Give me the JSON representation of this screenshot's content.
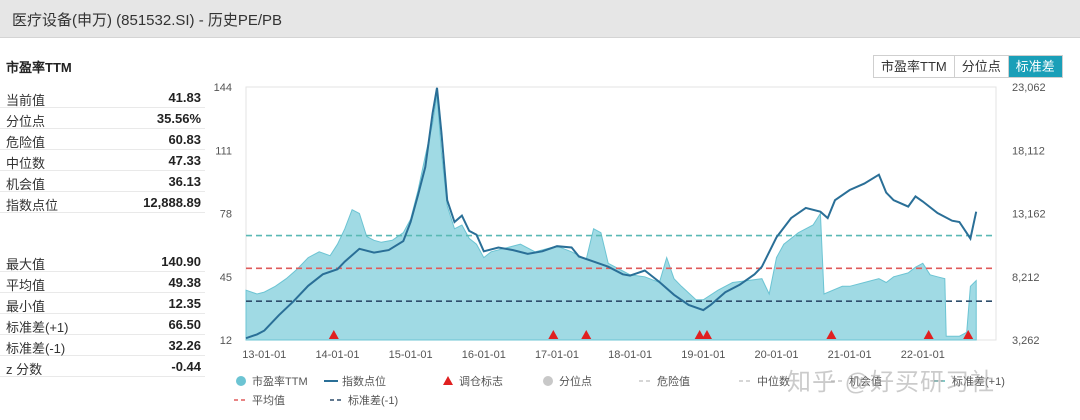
{
  "header": {
    "title": "医疗设备(申万) (851532.SI) - 历史PE/PB"
  },
  "metric_title": "市盈率TTM",
  "stats_top": [
    {
      "label": "当前值",
      "value": "41.83"
    },
    {
      "label": "分位点",
      "value": "35.56%"
    },
    {
      "label": "危险值",
      "value": "60.83"
    },
    {
      "label": "中位数",
      "value": "47.33"
    },
    {
      "label": "机会值",
      "value": "36.13"
    },
    {
      "label": "指数点位",
      "value": "12,888.89"
    }
  ],
  "stats_bottom": [
    {
      "label": "最大值",
      "value": "140.90"
    },
    {
      "label": "平均值",
      "value": "49.38"
    },
    {
      "label": "最小值",
      "value": "12.35"
    },
    {
      "label": "标准差(+1)",
      "value": "66.50"
    },
    {
      "label": "标准差(-1)",
      "value": "32.26"
    },
    {
      "label": "z 分数",
      "value": "-0.44"
    }
  ],
  "buttons": [
    {
      "label": "市盈率TTM",
      "active": false
    },
    {
      "label": "分位点",
      "active": false
    },
    {
      "label": "标准差",
      "active": true
    }
  ],
  "watermark": "知乎 @好买研习社",
  "colors": {
    "pe_fill": "#8fd4df",
    "pe_stroke": "#6cc4d3",
    "index_line": "#2a6f97",
    "mean_line": "#e05b5b",
    "std_plus": "#5ab9b5",
    "std_minus": "#2e4d6b",
    "marker": "#e02020",
    "legend_grey": "#c8c8c8"
  },
  "chart_data": {
    "type": "area",
    "x_ticks": [
      "13-01-01",
      "14-01-01",
      "15-01-01",
      "16-01-01",
      "17-01-01",
      "18-01-01",
      "19-01-01",
      "20-01-01",
      "21-01-01",
      "22-01-01"
    ],
    "x_range": [
      2012.75,
      2023.0
    ],
    "y_left": {
      "ticks": [
        "12",
        "45",
        "78",
        "111",
        "144"
      ],
      "range": [
        12,
        144
      ]
    },
    "y_right": {
      "ticks": [
        "3,262",
        "8,212",
        "13,162",
        "18,112",
        "23,062"
      ],
      "range": [
        3262,
        23062
      ]
    },
    "series": [
      {
        "name": "市盈率TTM",
        "axis": "left",
        "style": "area",
        "points": [
          [
            2012.75,
            38
          ],
          [
            2012.9,
            36
          ],
          [
            2013.0,
            37
          ],
          [
            2013.15,
            40
          ],
          [
            2013.3,
            44
          ],
          [
            2013.45,
            49
          ],
          [
            2013.6,
            55
          ],
          [
            2013.75,
            58
          ],
          [
            2013.9,
            56
          ],
          [
            2014.0,
            62
          ],
          [
            2014.1,
            70
          ],
          [
            2014.2,
            80
          ],
          [
            2014.3,
            78
          ],
          [
            2014.4,
            66
          ],
          [
            2014.5,
            64
          ],
          [
            2014.6,
            63
          ],
          [
            2014.75,
            64
          ],
          [
            2014.9,
            68
          ],
          [
            2015.0,
            75
          ],
          [
            2015.1,
            90
          ],
          [
            2015.2,
            108
          ],
          [
            2015.3,
            125
          ],
          [
            2015.36,
            140
          ],
          [
            2015.42,
            110
          ],
          [
            2015.5,
            82
          ],
          [
            2015.6,
            70
          ],
          [
            2015.7,
            72
          ],
          [
            2015.8,
            65
          ],
          [
            2015.9,
            62
          ],
          [
            2016.0,
            55
          ],
          [
            2016.1,
            58
          ],
          [
            2016.3,
            60
          ],
          [
            2016.5,
            62
          ],
          [
            2016.7,
            58
          ],
          [
            2016.9,
            60
          ],
          [
            2017.0,
            61
          ],
          [
            2017.2,
            58
          ],
          [
            2017.4,
            54
          ],
          [
            2017.5,
            70
          ],
          [
            2017.6,
            68
          ],
          [
            2017.7,
            52
          ],
          [
            2017.9,
            48
          ],
          [
            2018.0,
            46
          ],
          [
            2018.2,
            45
          ],
          [
            2018.4,
            42
          ],
          [
            2018.5,
            55
          ],
          [
            2018.6,
            44
          ],
          [
            2018.7,
            40
          ],
          [
            2018.9,
            33
          ],
          [
            2019.0,
            33
          ],
          [
            2019.2,
            38
          ],
          [
            2019.4,
            42
          ],
          [
            2019.6,
            43
          ],
          [
            2019.8,
            44
          ],
          [
            2019.9,
            36
          ],
          [
            2020.0,
            55
          ],
          [
            2020.1,
            62
          ],
          [
            2020.3,
            68
          ],
          [
            2020.5,
            72
          ],
          [
            2020.6,
            78
          ],
          [
            2020.65,
            36
          ],
          [
            2020.9,
            40
          ],
          [
            2021.0,
            40
          ],
          [
            2021.2,
            42
          ],
          [
            2021.4,
            44
          ],
          [
            2021.5,
            42
          ],
          [
            2021.6,
            45
          ],
          [
            2021.8,
            47
          ],
          [
            2021.9,
            50
          ],
          [
            2022.0,
            52
          ],
          [
            2022.1,
            46
          ],
          [
            2022.2,
            45
          ],
          [
            2022.3,
            44
          ],
          [
            2022.32,
            14
          ],
          [
            2022.5,
            14
          ],
          [
            2022.6,
            16
          ],
          [
            2022.65,
            40
          ],
          [
            2022.73,
            43
          ]
        ]
      },
      {
        "name": "指数点位",
        "axis": "right",
        "style": "line",
        "points": [
          [
            2012.75,
            3400
          ],
          [
            2012.9,
            3700
          ],
          [
            2013.0,
            4000
          ],
          [
            2013.2,
            5200
          ],
          [
            2013.4,
            6300
          ],
          [
            2013.6,
            7500
          ],
          [
            2013.8,
            8400
          ],
          [
            2014.0,
            8800
          ],
          [
            2014.1,
            9400
          ],
          [
            2014.3,
            10400
          ],
          [
            2014.5,
            10100
          ],
          [
            2014.7,
            10300
          ],
          [
            2014.9,
            11000
          ],
          [
            2015.0,
            12500
          ],
          [
            2015.1,
            14600
          ],
          [
            2015.2,
            16800
          ],
          [
            2015.3,
            21000
          ],
          [
            2015.36,
            23000
          ],
          [
            2015.42,
            19500
          ],
          [
            2015.5,
            14200
          ],
          [
            2015.6,
            12500
          ],
          [
            2015.7,
            13000
          ],
          [
            2015.8,
            11800
          ],
          [
            2015.9,
            11500
          ],
          [
            2016.0,
            10200
          ],
          [
            2016.2,
            10500
          ],
          [
            2016.4,
            10300
          ],
          [
            2016.6,
            10000
          ],
          [
            2016.8,
            10200
          ],
          [
            2017.0,
            10600
          ],
          [
            2017.2,
            10500
          ],
          [
            2017.3,
            9800
          ],
          [
            2017.5,
            9400
          ],
          [
            2017.7,
            9000
          ],
          [
            2017.9,
            8400
          ],
          [
            2018.0,
            8300
          ],
          [
            2018.2,
            8700
          ],
          [
            2018.4,
            7800
          ],
          [
            2018.6,
            6800
          ],
          [
            2018.8,
            6000
          ],
          [
            2019.0,
            5600
          ],
          [
            2019.1,
            6000
          ],
          [
            2019.3,
            7000
          ],
          [
            2019.5,
            7600
          ],
          [
            2019.7,
            8400
          ],
          [
            2019.8,
            9000
          ],
          [
            2020.0,
            11300
          ],
          [
            2020.2,
            12800
          ],
          [
            2020.4,
            13600
          ],
          [
            2020.6,
            13300
          ],
          [
            2020.7,
            12800
          ],
          [
            2020.8,
            14200
          ],
          [
            2021.0,
            15000
          ],
          [
            2021.2,
            15500
          ],
          [
            2021.4,
            16200
          ],
          [
            2021.5,
            14800
          ],
          [
            2021.6,
            14200
          ],
          [
            2021.8,
            13700
          ],
          [
            2021.9,
            14500
          ],
          [
            2022.0,
            14100
          ],
          [
            2022.2,
            13200
          ],
          [
            2022.4,
            12600
          ],
          [
            2022.5,
            12500
          ],
          [
            2022.65,
            11200
          ],
          [
            2022.73,
            13300
          ]
        ]
      }
    ],
    "reference_lines": [
      {
        "name": "平均值",
        "value": 49.38,
        "style": "dash"
      },
      {
        "name": "标准差(+1)",
        "value": 66.5,
        "style": "dash"
      },
      {
        "name": "标准差(-1)",
        "value": 32.26,
        "style": "dash"
      }
    ],
    "markers": {
      "name": "调仓标志",
      "x": [
        2013.95,
        2016.95,
        2017.4,
        2018.95,
        2019.05,
        2020.75,
        2022.08,
        2022.62
      ]
    },
    "legend": {
      "placement": "bottom",
      "items": [
        {
          "label": "市盈率TTM",
          "kind": "circle",
          "color": "#6cc4d3"
        },
        {
          "label": "指数点位",
          "kind": "line",
          "color": "#2a6f97"
        },
        {
          "label": "调仓标志",
          "kind": "triangle",
          "color": "#e02020"
        },
        {
          "label": "分位点",
          "kind": "circle",
          "color": "#c8c8c8"
        },
        {
          "label": "危险值",
          "kind": "dash",
          "color": "#c8c8c8"
        },
        {
          "label": "中位数",
          "kind": "dash",
          "color": "#c8c8c8"
        },
        {
          "label": "机会值",
          "kind": "dash",
          "color": "#c8c8c8"
        },
        {
          "label": "标准差(+1)",
          "kind": "dash",
          "color": "#5ab9b5"
        },
        {
          "label": "平均值",
          "kind": "dash",
          "color": "#e05b5b"
        },
        {
          "label": "标准差(-1)",
          "kind": "dash",
          "color": "#2e4d6b"
        }
      ]
    }
  }
}
